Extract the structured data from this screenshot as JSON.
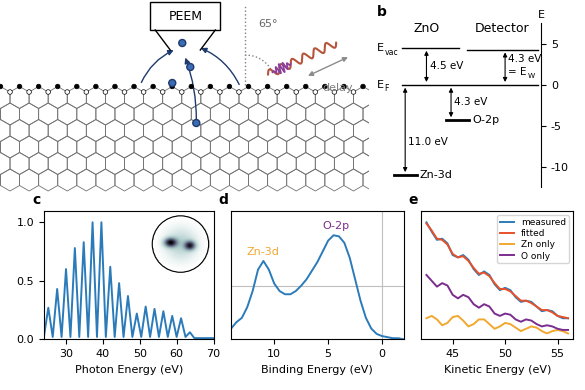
{
  "figure_a": {
    "detector": "PEEM",
    "angle": "65°",
    "delay": "delay"
  },
  "figure_b": {
    "panel_label": "b",
    "left_title": "ZnO",
    "right_title": "Detector",
    "axis_label": "E",
    "ylim": [
      -12.5,
      7.5
    ],
    "yticks": [
      5,
      0,
      -5,
      -10
    ],
    "vacuum": {
      "symbol": "E",
      "subscript": "vac",
      "energy": 4.5,
      "gap": "4.5 eV"
    },
    "fermi": {
      "symbol": "E",
      "subscript": "F",
      "energy": 0
    },
    "detector_vacuum": {
      "energy": 4.3,
      "gap": "4.3 eV",
      "symbol": "= E",
      "subscript": "W"
    },
    "o2p": {
      "label": "O-2p",
      "energy": -4.3,
      "gap": "4.3 eV"
    },
    "zn3d": {
      "label": "Zn-3d",
      "energy": -11.0,
      "gap": "11.0 eV"
    }
  },
  "chart_data": [
    {
      "type": "line",
      "panel_label": "c",
      "xlabel": "Photon Energy (eV)",
      "color": "#2b7bba",
      "x": [
        24.0,
        25.2,
        26.4,
        27.6,
        28.8,
        30.0,
        31.2,
        32.4,
        33.6,
        34.8,
        36.0,
        37.2,
        38.4,
        39.6,
        40.8,
        42.0,
        43.2,
        44.4,
        45.6,
        46.8,
        48.0,
        49.2,
        50.4,
        51.6,
        52.8,
        54.0,
        55.2,
        56.4,
        57.6,
        58.8,
        60.0,
        61.2,
        62.4,
        63.6,
        64.8,
        70.0
      ],
      "values": [
        0.02,
        0.27,
        0.02,
        0.43,
        0.02,
        0.6,
        0.02,
        0.78,
        0.02,
        0.83,
        0.02,
        1.0,
        0.02,
        1.0,
        0.02,
        0.62,
        0.02,
        0.48,
        0.02,
        0.37,
        0.02,
        0.22,
        0.02,
        0.28,
        0.02,
        0.26,
        0.02,
        0.24,
        0.02,
        0.2,
        0.02,
        0.18,
        0.02,
        0.06,
        0.01,
        0.01
      ],
      "xlim": [
        24,
        70
      ],
      "ylim": [
        0,
        1.1
      ],
      "xticks": [
        30,
        40,
        50,
        60,
        70
      ],
      "yticks": [
        {
          "value": 0,
          "label": "0.0"
        },
        {
          "value": 0.5,
          "label": "0.5"
        },
        {
          "value": 1.0,
          "label": "1.0"
        }
      ]
    },
    {
      "type": "line",
      "panel_label": "d",
      "xlabel": "Binding Energy (eV)",
      "color": "#2b7bba",
      "x": [
        14,
        13.5,
        13,
        12.5,
        12,
        11.5,
        11,
        10.5,
        10,
        9.5,
        9,
        8.5,
        8,
        7.5,
        7,
        6.5,
        6,
        5.5,
        5,
        4.5,
        4,
        3.5,
        3,
        2.5,
        2,
        1.5,
        1,
        0.5,
        0,
        -0.5,
        -1,
        -1.5,
        -2
      ],
      "values": [
        0.1,
        0.16,
        0.2,
        0.3,
        0.45,
        0.65,
        0.73,
        0.65,
        0.52,
        0.45,
        0.42,
        0.42,
        0.45,
        0.5,
        0.56,
        0.64,
        0.72,
        0.82,
        0.92,
        0.97,
        0.96,
        0.9,
        0.76,
        0.56,
        0.36,
        0.2,
        0.1,
        0.05,
        0.03,
        0.02,
        0.01,
        0.01,
        0.0
      ],
      "xlim": [
        14,
        -2
      ],
      "ylim": [
        0,
        1.2
      ],
      "xticks": [
        10,
        5,
        0
      ],
      "tick_labels": "x",
      "reference_lines": {
        "x": 0,
        "y": 0.5
      },
      "annotations": [
        {
          "text": "Zn-3d",
          "x": 11.0,
          "color": "#f0a830"
        },
        {
          "text": "O-2p",
          "x": 4.3,
          "color": "#7b2d8e"
        }
      ]
    },
    {
      "type": "line",
      "panel_label": "e",
      "xlabel": "Kinetic Energy (eV)",
      "x": [
        42.5,
        43.0,
        43.5,
        44.0,
        44.5,
        45.0,
        45.5,
        46.0,
        46.5,
        47.0,
        47.5,
        48.0,
        48.5,
        49.0,
        49.5,
        50.0,
        50.5,
        51.0,
        51.5,
        52.0,
        52.5,
        53.0,
        53.5,
        54.0,
        54.5,
        55.0,
        55.5,
        56.0
      ],
      "series": [
        {
          "name": "measured",
          "color": "#2b7bba",
          "values": [
            1.0,
            0.92,
            0.85,
            0.86,
            0.82,
            0.72,
            0.7,
            0.72,
            0.68,
            0.6,
            0.55,
            0.58,
            0.55,
            0.47,
            0.42,
            0.44,
            0.42,
            0.36,
            0.32,
            0.33,
            0.32,
            0.28,
            0.24,
            0.25,
            0.24,
            0.2,
            0.18,
            0.18
          ]
        },
        {
          "name": "fitted",
          "color": "#e8502a",
          "values": [
            0.99,
            0.93,
            0.86,
            0.85,
            0.81,
            0.73,
            0.7,
            0.71,
            0.67,
            0.61,
            0.56,
            0.57,
            0.54,
            0.48,
            0.43,
            0.43,
            0.41,
            0.37,
            0.33,
            0.33,
            0.31,
            0.28,
            0.25,
            0.25,
            0.23,
            0.2,
            0.19,
            0.18
          ]
        },
        {
          "name": "Zn only",
          "color": "#f0a830",
          "values": [
            0.18,
            0.2,
            0.17,
            0.12,
            0.14,
            0.19,
            0.2,
            0.16,
            0.11,
            0.13,
            0.17,
            0.17,
            0.13,
            0.09,
            0.11,
            0.14,
            0.13,
            0.1,
            0.07,
            0.09,
            0.11,
            0.1,
            0.07,
            0.05,
            0.07,
            0.08,
            0.07,
            0.05
          ]
        },
        {
          "name": "O only",
          "color": "#7b2d8e",
          "values": [
            0.55,
            0.5,
            0.45,
            0.48,
            0.46,
            0.38,
            0.35,
            0.38,
            0.36,
            0.3,
            0.27,
            0.3,
            0.28,
            0.22,
            0.2,
            0.22,
            0.21,
            0.17,
            0.15,
            0.17,
            0.16,
            0.13,
            0.11,
            0.12,
            0.11,
            0.09,
            0.08,
            0.08
          ]
        }
      ],
      "xlim": [
        42,
        56.5
      ],
      "ylim": [
        0,
        1.1
      ],
      "xticks": [
        45,
        50,
        55
      ],
      "tick_labels": "x",
      "legend": "upper right"
    }
  ]
}
